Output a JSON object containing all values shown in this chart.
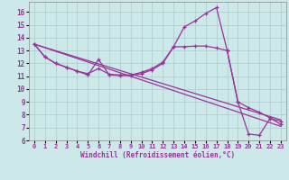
{
  "xlabel": "Windchill (Refroidissement éolien,°C)",
  "bg_color": "#cce8e8",
  "grid_color": "#b0d0d0",
  "line_color": "#993399",
  "xlim": [
    -0.5,
    23.5
  ],
  "ylim": [
    6,
    16.8
  ],
  "yticks": [
    6,
    7,
    8,
    9,
    10,
    11,
    12,
    13,
    14,
    15,
    16
  ],
  "xticks": [
    0,
    1,
    2,
    3,
    4,
    5,
    6,
    7,
    8,
    9,
    10,
    11,
    12,
    13,
    14,
    15,
    16,
    17,
    18,
    19,
    20,
    21,
    22,
    23
  ],
  "xtick_labels": [
    "0",
    "1",
    "2",
    "3",
    "4",
    "5",
    "6",
    "7",
    "8",
    "9",
    "10",
    "11",
    "12",
    "13",
    "14",
    "15",
    "16",
    "17",
    "18",
    "19",
    "20",
    "21",
    "22",
    "23"
  ],
  "series1_x": [
    0,
    1,
    2,
    3,
    4,
    5,
    6,
    7,
    8,
    9,
    10,
    11,
    12,
    13,
    14,
    15,
    16,
    17,
    18,
    19,
    20,
    21,
    22,
    23
  ],
  "series1_y": [
    13.5,
    12.5,
    12.0,
    11.7,
    11.4,
    11.1,
    12.3,
    11.1,
    11.05,
    11.05,
    11.2,
    11.5,
    12.0,
    13.3,
    14.85,
    15.3,
    15.9,
    16.35,
    13.0,
    9.0,
    6.5,
    6.4,
    7.7,
    7.5
  ],
  "series2_x": [
    0,
    1,
    2,
    3,
    4,
    5,
    6,
    7,
    8,
    9,
    10,
    11,
    12,
    13,
    14,
    15,
    16,
    17,
    18,
    19,
    20,
    21,
    22,
    23
  ],
  "series2_y": [
    13.5,
    12.5,
    12.0,
    11.7,
    11.4,
    11.2,
    11.6,
    11.15,
    11.1,
    11.1,
    11.3,
    11.6,
    12.1,
    13.3,
    13.3,
    13.35,
    13.35,
    13.2,
    13.0,
    9.0,
    8.55,
    8.2,
    7.75,
    7.25
  ],
  "series3_x": [
    0,
    23
  ],
  "series3_y": [
    13.5,
    7.1
  ],
  "series4_x": [
    0,
    23
  ],
  "series4_y": [
    13.5,
    7.6
  ]
}
